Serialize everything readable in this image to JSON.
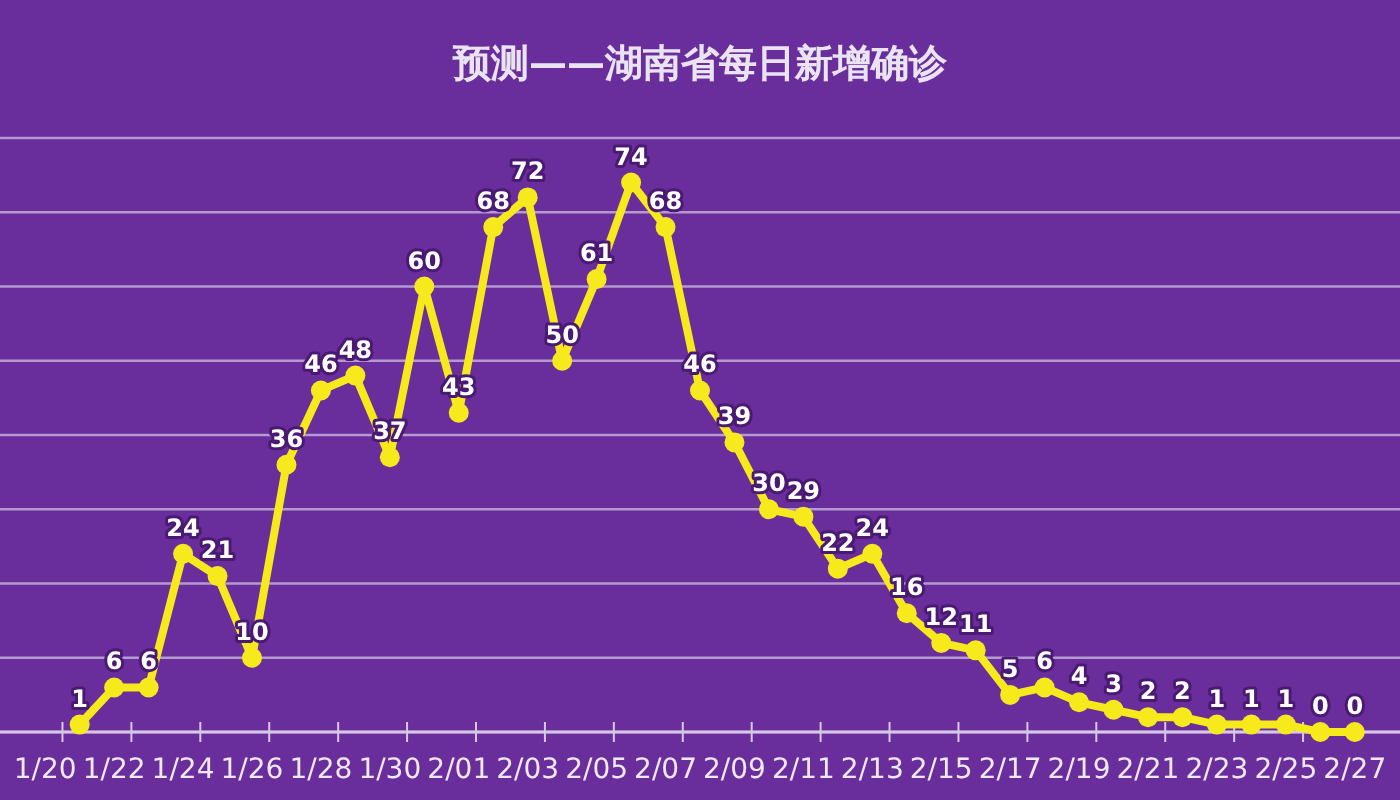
{
  "chart_data": {
    "type": "line",
    "title": "预测——湖南省每日新增确诊",
    "categories": [
      "1/20",
      null,
      "1/22",
      null,
      "1/24",
      null,
      "1/26",
      null,
      "1/28",
      null,
      "1/30",
      null,
      "2/01",
      null,
      "2/03",
      null,
      "2/05",
      null,
      "2/07",
      null,
      "2/09",
      null,
      "2/11",
      null,
      "2/13",
      null,
      "2/15",
      null,
      "2/17",
      null,
      "2/19",
      null,
      "2/21",
      null,
      "2/23",
      null,
      "2/25",
      null,
      "2/27"
    ],
    "series": [
      {
        "color": "#f7ea1c",
        "values": [
          null,
          1,
          6,
          6,
          24,
          21,
          10,
          36,
          46,
          48,
          37,
          60,
          43,
          68,
          72,
          50,
          61,
          74,
          68,
          46,
          39,
          30,
          29,
          22,
          24,
          16,
          12,
          11,
          5,
          6,
          4,
          3,
          2,
          2,
          1,
          1,
          1,
          0,
          0
        ]
      }
    ],
    "ylim": [
      0,
      80
    ],
    "yticks": [
      {
        "value": 0,
        "label": null
      },
      {
        "value": 10,
        "label": null
      },
      {
        "value": 20,
        "label": null
      },
      {
        "value": 30,
        "label": null
      },
      {
        "value": 40,
        "label": null
      },
      {
        "value": 50,
        "label": null
      },
      {
        "value": 60,
        "label": null
      },
      {
        "value": 70,
        "label": null
      },
      {
        "value": 80,
        "label": null
      }
    ],
    "tick_labels": "x",
    "grid": "y",
    "marker": "circle",
    "line_style": "solid",
    "data_labels": true
  }
}
